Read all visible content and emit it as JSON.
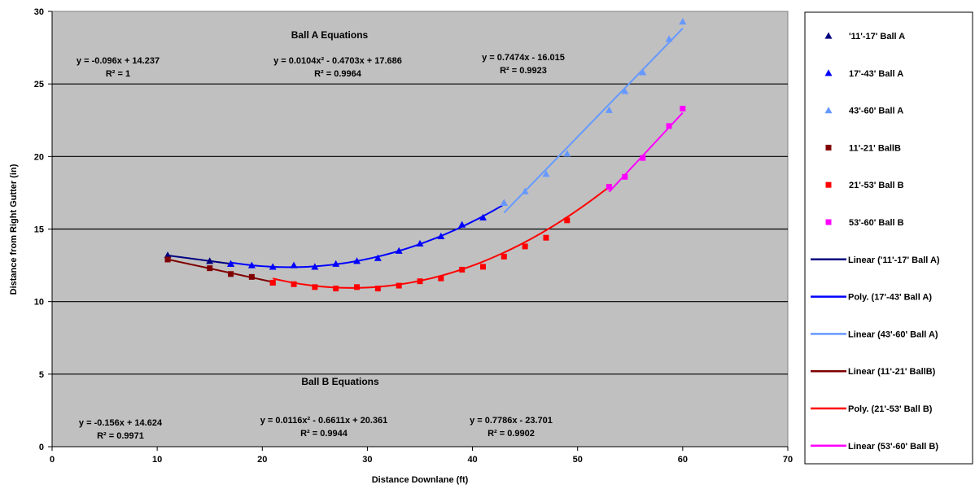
{
  "chart_data": {
    "type": "scatter",
    "xlabel": "Distance Downlane (ft)",
    "ylabel": "Distance from Right Gutter (in)",
    "xlim": [
      0,
      70
    ],
    "ylim": [
      0,
      30
    ],
    "xticks": [
      "0",
      "10",
      "20",
      "30",
      "40",
      "50",
      "60",
      "70"
    ],
    "yticks": [
      "0",
      "5",
      "10",
      "15",
      "20",
      "25",
      "30"
    ],
    "grid": "horizontal",
    "background": "#c0c0c0",
    "legend_position": "right",
    "series": [
      {
        "name": "'11'-17' Ball A",
        "marker": "triangle",
        "color": "#000080",
        "x": [
          11,
          15,
          17
        ],
        "y": [
          13.2,
          12.8,
          12.6
        ]
      },
      {
        "name": "17'-43' Ball A",
        "marker": "triangle",
        "color": "#0000ff",
        "x": [
          17,
          19,
          21,
          23,
          25,
          27,
          29,
          31,
          33,
          35,
          37,
          39,
          41,
          43
        ],
        "y": [
          12.6,
          12.5,
          12.4,
          12.5,
          12.4,
          12.6,
          12.8,
          13.0,
          13.5,
          14.0,
          14.5,
          15.3,
          15.8,
          16.8
        ]
      },
      {
        "name": "43'-60' Ball A",
        "marker": "triangle",
        "color": "#6699ff",
        "x": [
          43,
          45,
          47,
          49,
          53,
          54.5,
          56.2,
          58.7,
          60
        ],
        "y": [
          16.8,
          17.6,
          18.8,
          20.2,
          23.2,
          24.5,
          25.8,
          28.1,
          29.3
        ]
      },
      {
        "name": "11'-21' BallB",
        "marker": "square",
        "color": "#800000",
        "x": [
          11,
          15,
          17,
          19,
          21
        ],
        "y": [
          12.9,
          12.3,
          11.9,
          11.7,
          11.3
        ]
      },
      {
        "name": "21'-53' Ball B",
        "marker": "square",
        "color": "#ff0000",
        "x": [
          21,
          23,
          25,
          27,
          29,
          31,
          33,
          35,
          37,
          39,
          41,
          43,
          45,
          47,
          49,
          53
        ],
        "y": [
          11.3,
          11.2,
          11.0,
          10.9,
          11.0,
          10.9,
          11.1,
          11.4,
          11.6,
          12.2,
          12.4,
          13.1,
          13.8,
          14.4,
          15.6,
          17.9
        ]
      },
      {
        "name": "53'-60' Ball B",
        "marker": "square",
        "color": "#ff00ff",
        "x": [
          53,
          54.5,
          56.2,
          58.7,
          60
        ],
        "y": [
          17.9,
          18.6,
          19.9,
          22.1,
          23.3
        ]
      }
    ],
    "trendlines": [
      {
        "name": "Linear ('11'-17' Ball A)",
        "color": "#000080",
        "type": "linear",
        "coef": [
          -0.096,
          14.237
        ],
        "range": [
          11,
          17
        ]
      },
      {
        "name": "Poly. (17'-43' Ball A)",
        "color": "#0000ff",
        "type": "poly2",
        "coef": [
          0.0104,
          -0.4703,
          17.686
        ],
        "range": [
          17,
          43
        ]
      },
      {
        "name": "Linear (43'-60' Ball A)",
        "color": "#6699ff",
        "type": "linear",
        "coef": [
          0.7474,
          -16.015
        ],
        "range": [
          43,
          60
        ]
      },
      {
        "name": "Linear (11'-21' BallB)",
        "color": "#800000",
        "type": "linear",
        "coef": [
          -0.156,
          14.624
        ],
        "range": [
          11,
          21
        ]
      },
      {
        "name": "Poly. (21'-53' Ball B)",
        "color": "#ff0000",
        "type": "poly2",
        "coef": [
          0.0116,
          -0.6611,
          20.361
        ],
        "range": [
          21,
          53
        ]
      },
      {
        "name": "Linear (53'-60' Ball B)",
        "color": "#ff00ff",
        "type": "linear",
        "coef": [
          0.7786,
          -23.701
        ],
        "range": [
          53,
          60
        ]
      }
    ],
    "annotations": {
      "ball_a_header": "Ball A Equations",
      "ball_b_header": "Ball B Equations",
      "a1_eq": "y = -0.096x + 14.237",
      "a1_r2": "R² = 1",
      "a2_eq": "y = 0.0104x² - 0.4703x + 17.686",
      "a2_r2": "R² = 0.9964",
      "a3_eq": "y = 0.7474x - 16.015",
      "a3_r2": "R² = 0.9923",
      "b1_eq": "y = -0.156x + 14.624",
      "b1_r2": "R² = 0.9971",
      "b2_eq": "y = 0.0116x² - 0.6611x + 20.361",
      "b2_r2": "R² = 0.9944",
      "b3_eq": "y = 0.7786x - 23.701",
      "b3_r2": "R² = 0.9902"
    }
  }
}
